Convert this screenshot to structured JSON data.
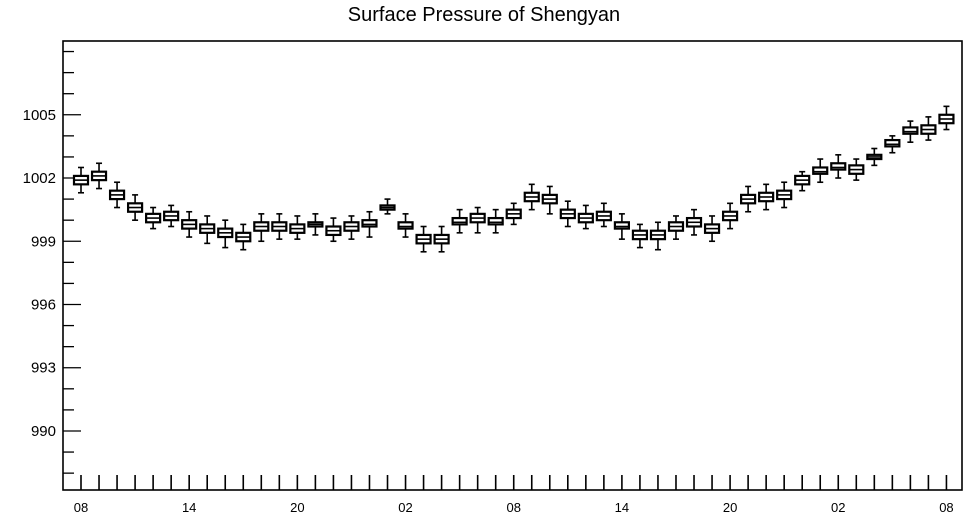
{
  "chart_data": {
    "type": "box",
    "title": "Surface Pressure of Shengyan",
    "xlabel": "",
    "ylabel": "",
    "ylim": [
      987.2,
      1008.5
    ],
    "y_ticks": [
      990,
      993,
      996,
      999,
      1002,
      1005
    ],
    "x_tick_labels": [
      "08",
      "14",
      "20",
      "02",
      "08",
      "14",
      "20",
      "02",
      "08"
    ],
    "grid": false,
    "series": [
      {
        "medians": [
          1001.9,
          1002.1,
          1001.2,
          1000.6,
          1000.1,
          1000.2,
          999.8,
          999.6,
          999.4,
          999.2,
          999.7,
          999.7,
          999.6,
          999.8,
          999.5,
          999.7,
          999.8,
          1000.6,
          999.7,
          999.1,
          999.1,
          999.9,
          1000.1,
          999.9,
          1000.3,
          1001.1,
          1001.0,
          1000.3,
          1000.1,
          1000.2,
          999.7,
          999.3,
          999.3,
          999.7,
          999.9,
          999.6,
          1000.2,
          1001.0,
          1001.1,
          1001.2,
          1001.9,
          1002.3,
          1002.5,
          1002.4,
          1003.0,
          1003.6,
          1004.2,
          1004.3,
          1004.8
        ],
        "q1": [
          1001.7,
          1001.9,
          1001.0,
          1000.4,
          999.9,
          1000.0,
          999.6,
          999.4,
          999.2,
          999.0,
          999.5,
          999.5,
          999.4,
          999.7,
          999.3,
          999.5,
          999.7,
          1000.5,
          999.6,
          998.9,
          998.9,
          999.8,
          999.9,
          999.8,
          1000.1,
          1000.9,
          1000.8,
          1000.1,
          999.9,
          1000.0,
          999.6,
          999.1,
          999.1,
          999.5,
          999.7,
          999.4,
          1000.0,
          1000.8,
          1000.9,
          1001.0,
          1001.7,
          1002.2,
          1002.4,
          1002.2,
          1002.9,
          1003.5,
          1004.1,
          1004.1,
          1004.6
        ],
        "q3": [
          1002.1,
          1002.3,
          1001.4,
          1000.8,
          1000.3,
          1000.4,
          1000.0,
          999.8,
          999.6,
          999.4,
          999.9,
          999.9,
          999.8,
          999.9,
          999.7,
          999.9,
          1000.0,
          1000.7,
          999.9,
          999.3,
          999.3,
          1000.1,
          1000.3,
          1000.1,
          1000.5,
          1001.3,
          1001.2,
          1000.5,
          1000.3,
          1000.4,
          999.9,
          999.5,
          999.5,
          999.9,
          1000.1,
          999.8,
          1000.4,
          1001.2,
          1001.3,
          1001.4,
          1002.1,
          1002.5,
          1002.7,
          1002.6,
          1003.1,
          1003.8,
          1004.4,
          1004.5,
          1005.0
        ],
        "whisker_low": [
          1001.3,
          1001.5,
          1000.6,
          1000.0,
          999.6,
          999.7,
          999.2,
          998.9,
          998.7,
          998.6,
          999.0,
          999.1,
          999.1,
          999.3,
          999.0,
          999.1,
          999.2,
          1000.3,
          999.2,
          998.5,
          998.5,
          999.4,
          999.4,
          999.4,
          999.8,
          1000.5,
          1000.3,
          999.7,
          999.6,
          999.7,
          999.1,
          998.7,
          998.6,
          999.1,
          999.3,
          999.0,
          999.6,
          1000.4,
          1000.5,
          1000.6,
          1001.4,
          1001.8,
          1002.0,
          1001.9,
          1002.6,
          1003.2,
          1003.7,
          1003.8,
          1004.3
        ],
        "whisker_high": [
          1002.5,
          1002.7,
          1001.8,
          1001.2,
          1000.6,
          1000.7,
          1000.4,
          1000.2,
          1000.0,
          999.8,
          1000.3,
          1000.3,
          1000.2,
          1000.3,
          1000.1,
          1000.2,
          1000.4,
          1001.0,
          1000.3,
          999.7,
          999.7,
          1000.5,
          1000.6,
          1000.5,
          1000.8,
          1001.7,
          1001.6,
          1000.9,
          1000.7,
          1000.8,
          1000.3,
          999.8,
          999.9,
          1000.2,
          1000.5,
          1000.2,
          1000.8,
          1001.6,
          1001.7,
          1001.8,
          1002.3,
          1002.9,
          1003.1,
          1002.9,
          1003.4,
          1004.0,
          1004.7,
          1004.9,
          1005.4
        ]
      }
    ]
  }
}
